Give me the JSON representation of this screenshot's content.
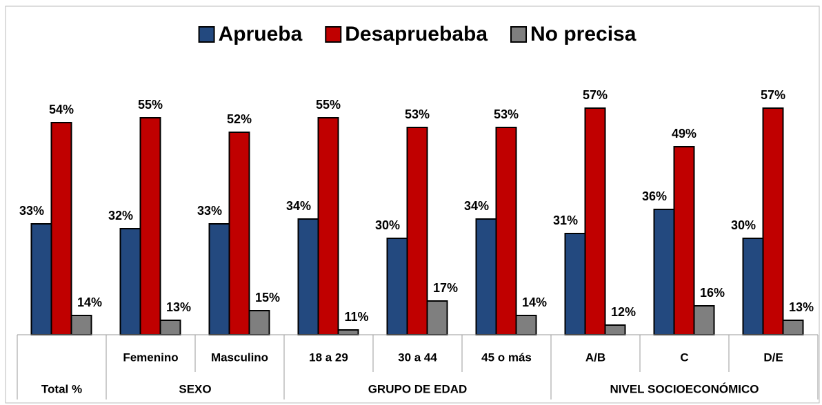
{
  "chart_data": {
    "type": "bar",
    "categories": [
      null,
      "Femenino",
      "Masculino",
      "18 a 29",
      "30 a 44",
      "45 o más",
      "A/B",
      "C",
      "D/E"
    ],
    "groups": [
      {
        "label": "Total %",
        "size": 1
      },
      {
        "label": "SEXO",
        "size": 2
      },
      {
        "label": "GRUPO DE EDAD",
        "size": 3
      },
      {
        "label": "NIVEL SOCIOECONÓMICO",
        "size": 3
      }
    ],
    "series": [
      {
        "name": "Aprueba",
        "color": "#23497f",
        "values": [
          33,
          32,
          33,
          34,
          30,
          34,
          31,
          36,
          30
        ],
        "value_labels": [
          "33%",
          "32%",
          "33%",
          "34%",
          "30%",
          "34%",
          "31%",
          "36%",
          "30%"
        ]
      },
      {
        "name": "Desapruebaba",
        "color": "#c00000",
        "values": [
          54,
          55,
          52,
          55,
          53,
          53,
          57,
          49,
          57
        ],
        "value_labels": [
          "54%",
          "55%",
          "52%",
          "55%",
          "53%",
          "53%",
          "57%",
          "49%",
          "57%"
        ]
      },
      {
        "name": "No precisa",
        "color": "#7f7f7f",
        "values": [
          14,
          13,
          15,
          11,
          17,
          14,
          12,
          16,
          13
        ],
        "value_labels": [
          "14%",
          "13%",
          "15%",
          "11%",
          "17%",
          "14%",
          "12%",
          "16%",
          "13%"
        ]
      }
    ],
    "ylim": [
      10,
      60
    ],
    "legend": "top"
  }
}
